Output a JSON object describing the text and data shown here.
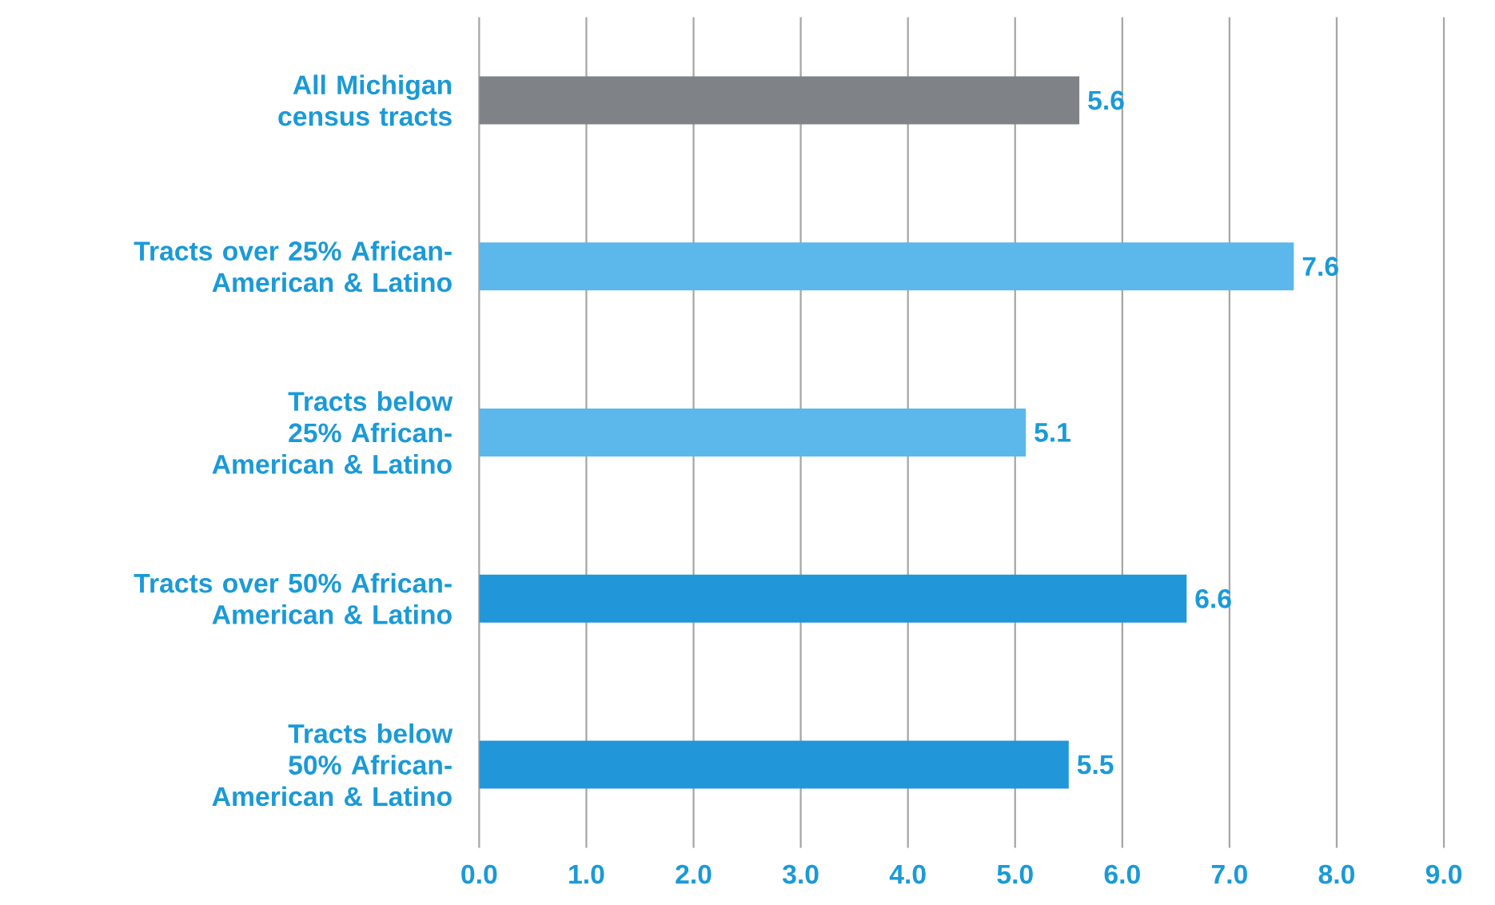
{
  "chart_data": {
    "type": "bar",
    "orientation": "horizontal",
    "categories": [
      "All Michigan census tracts",
      "Tracts over 25% African-American & Latino",
      "Tracts below 25% African-American & Latino",
      "Tracts over 50% African-American & Latino",
      "Tracts below 50% African-American & Latino"
    ],
    "values": [
      5.6,
      7.6,
      5.1,
      6.6,
      5.5
    ],
    "colors": [
      "#7f8287",
      "#5cb8ea",
      "#5cb8ea",
      "#2196d8",
      "#2196d8"
    ],
    "xlim": [
      0,
      9
    ],
    "xticks": [
      {
        "value": 0,
        "label": "0.0"
      },
      {
        "value": 1,
        "label": "1.0"
      },
      {
        "value": 2,
        "label": "2.0"
      },
      {
        "value": 3,
        "label": "3.0"
      },
      {
        "value": 4,
        "label": "4.0"
      },
      {
        "value": 5,
        "label": "5.0"
      },
      {
        "value": 6,
        "label": "6.0"
      },
      {
        "value": 7,
        "label": "7.0"
      },
      {
        "value": 8,
        "label": "8.0"
      },
      {
        "value": 9,
        "label": "9.0"
      }
    ],
    "grid": "x",
    "data_labels": true
  }
}
